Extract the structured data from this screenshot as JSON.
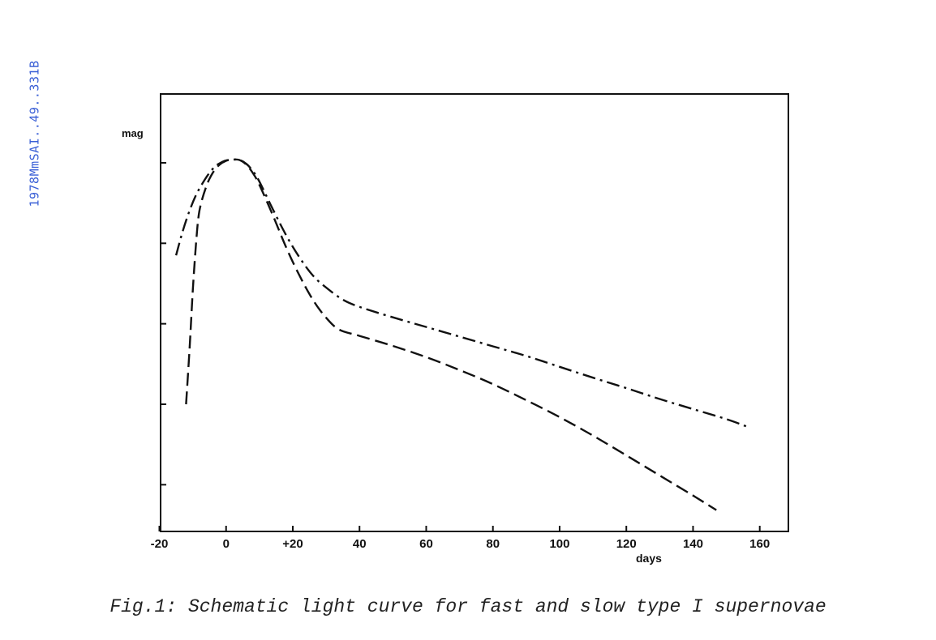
{
  "stamp": "1978MmSAI..49..331B",
  "caption": "Fig.1: Schematic light curve for fast and slow type I supernovae",
  "chart_data": {
    "type": "line",
    "title": "",
    "xlabel": "days",
    "ylabel": "mag",
    "xlim": [
      -20,
      165
    ],
    "ylim": [
      0,
      112
    ],
    "x_ticks": [
      -20,
      0,
      20,
      40,
      60,
      80,
      100,
      120,
      140,
      160
    ],
    "x_tick_labels": [
      "-20",
      "0",
      "+20",
      "40",
      "60",
      "80",
      "100",
      "120",
      "140",
      "160"
    ],
    "y_ticks": [
      10,
      30,
      50,
      70,
      90
    ],
    "y_tick_labels": [],
    "grid": false,
    "legend": "none",
    "series": [
      {
        "style": "dash",
        "x": [
          -12,
          -11,
          -10,
          -9,
          -8,
          -6,
          -4,
          -2,
          0,
          2,
          4,
          6,
          8,
          10,
          14,
          18,
          22,
          26,
          30,
          34,
          40,
          50,
          60,
          70,
          80,
          90,
          100,
          110,
          120,
          130,
          140,
          147
        ],
        "y": [
          30,
          43,
          58,
          70,
          78,
          84,
          87.5,
          89.5,
          90.5,
          90.8,
          90.7,
          89.6,
          87.5,
          84.5,
          77,
          69,
          62,
          56,
          51.5,
          48.5,
          47,
          44.5,
          41.7,
          38.5,
          35,
          31,
          26.8,
          22.2,
          17.3,
          12.3,
          7.3,
          3.7
        ]
      },
      {
        "style": "dash-dot",
        "x": [
          -15,
          -13,
          -11,
          -9,
          -7,
          -5,
          -3,
          -1,
          0,
          2,
          4,
          6,
          8,
          10,
          14,
          18,
          22,
          26,
          30,
          35,
          40,
          50,
          60,
          70,
          80,
          90,
          100,
          110,
          120,
          130,
          140,
          150,
          156
        ],
        "y": [
          67,
          73,
          78,
          82,
          85,
          87.5,
          89.3,
          90.3,
          90.6,
          90.8,
          90.7,
          89.8,
          88,
          85.3,
          78.5,
          72,
          66.5,
          62,
          59,
          56,
          54.2,
          51.6,
          49.2,
          46.8,
          44.4,
          42,
          39.3,
          36.6,
          34,
          31.3,
          28.8,
          26.3,
          24.5
        ]
      }
    ]
  }
}
